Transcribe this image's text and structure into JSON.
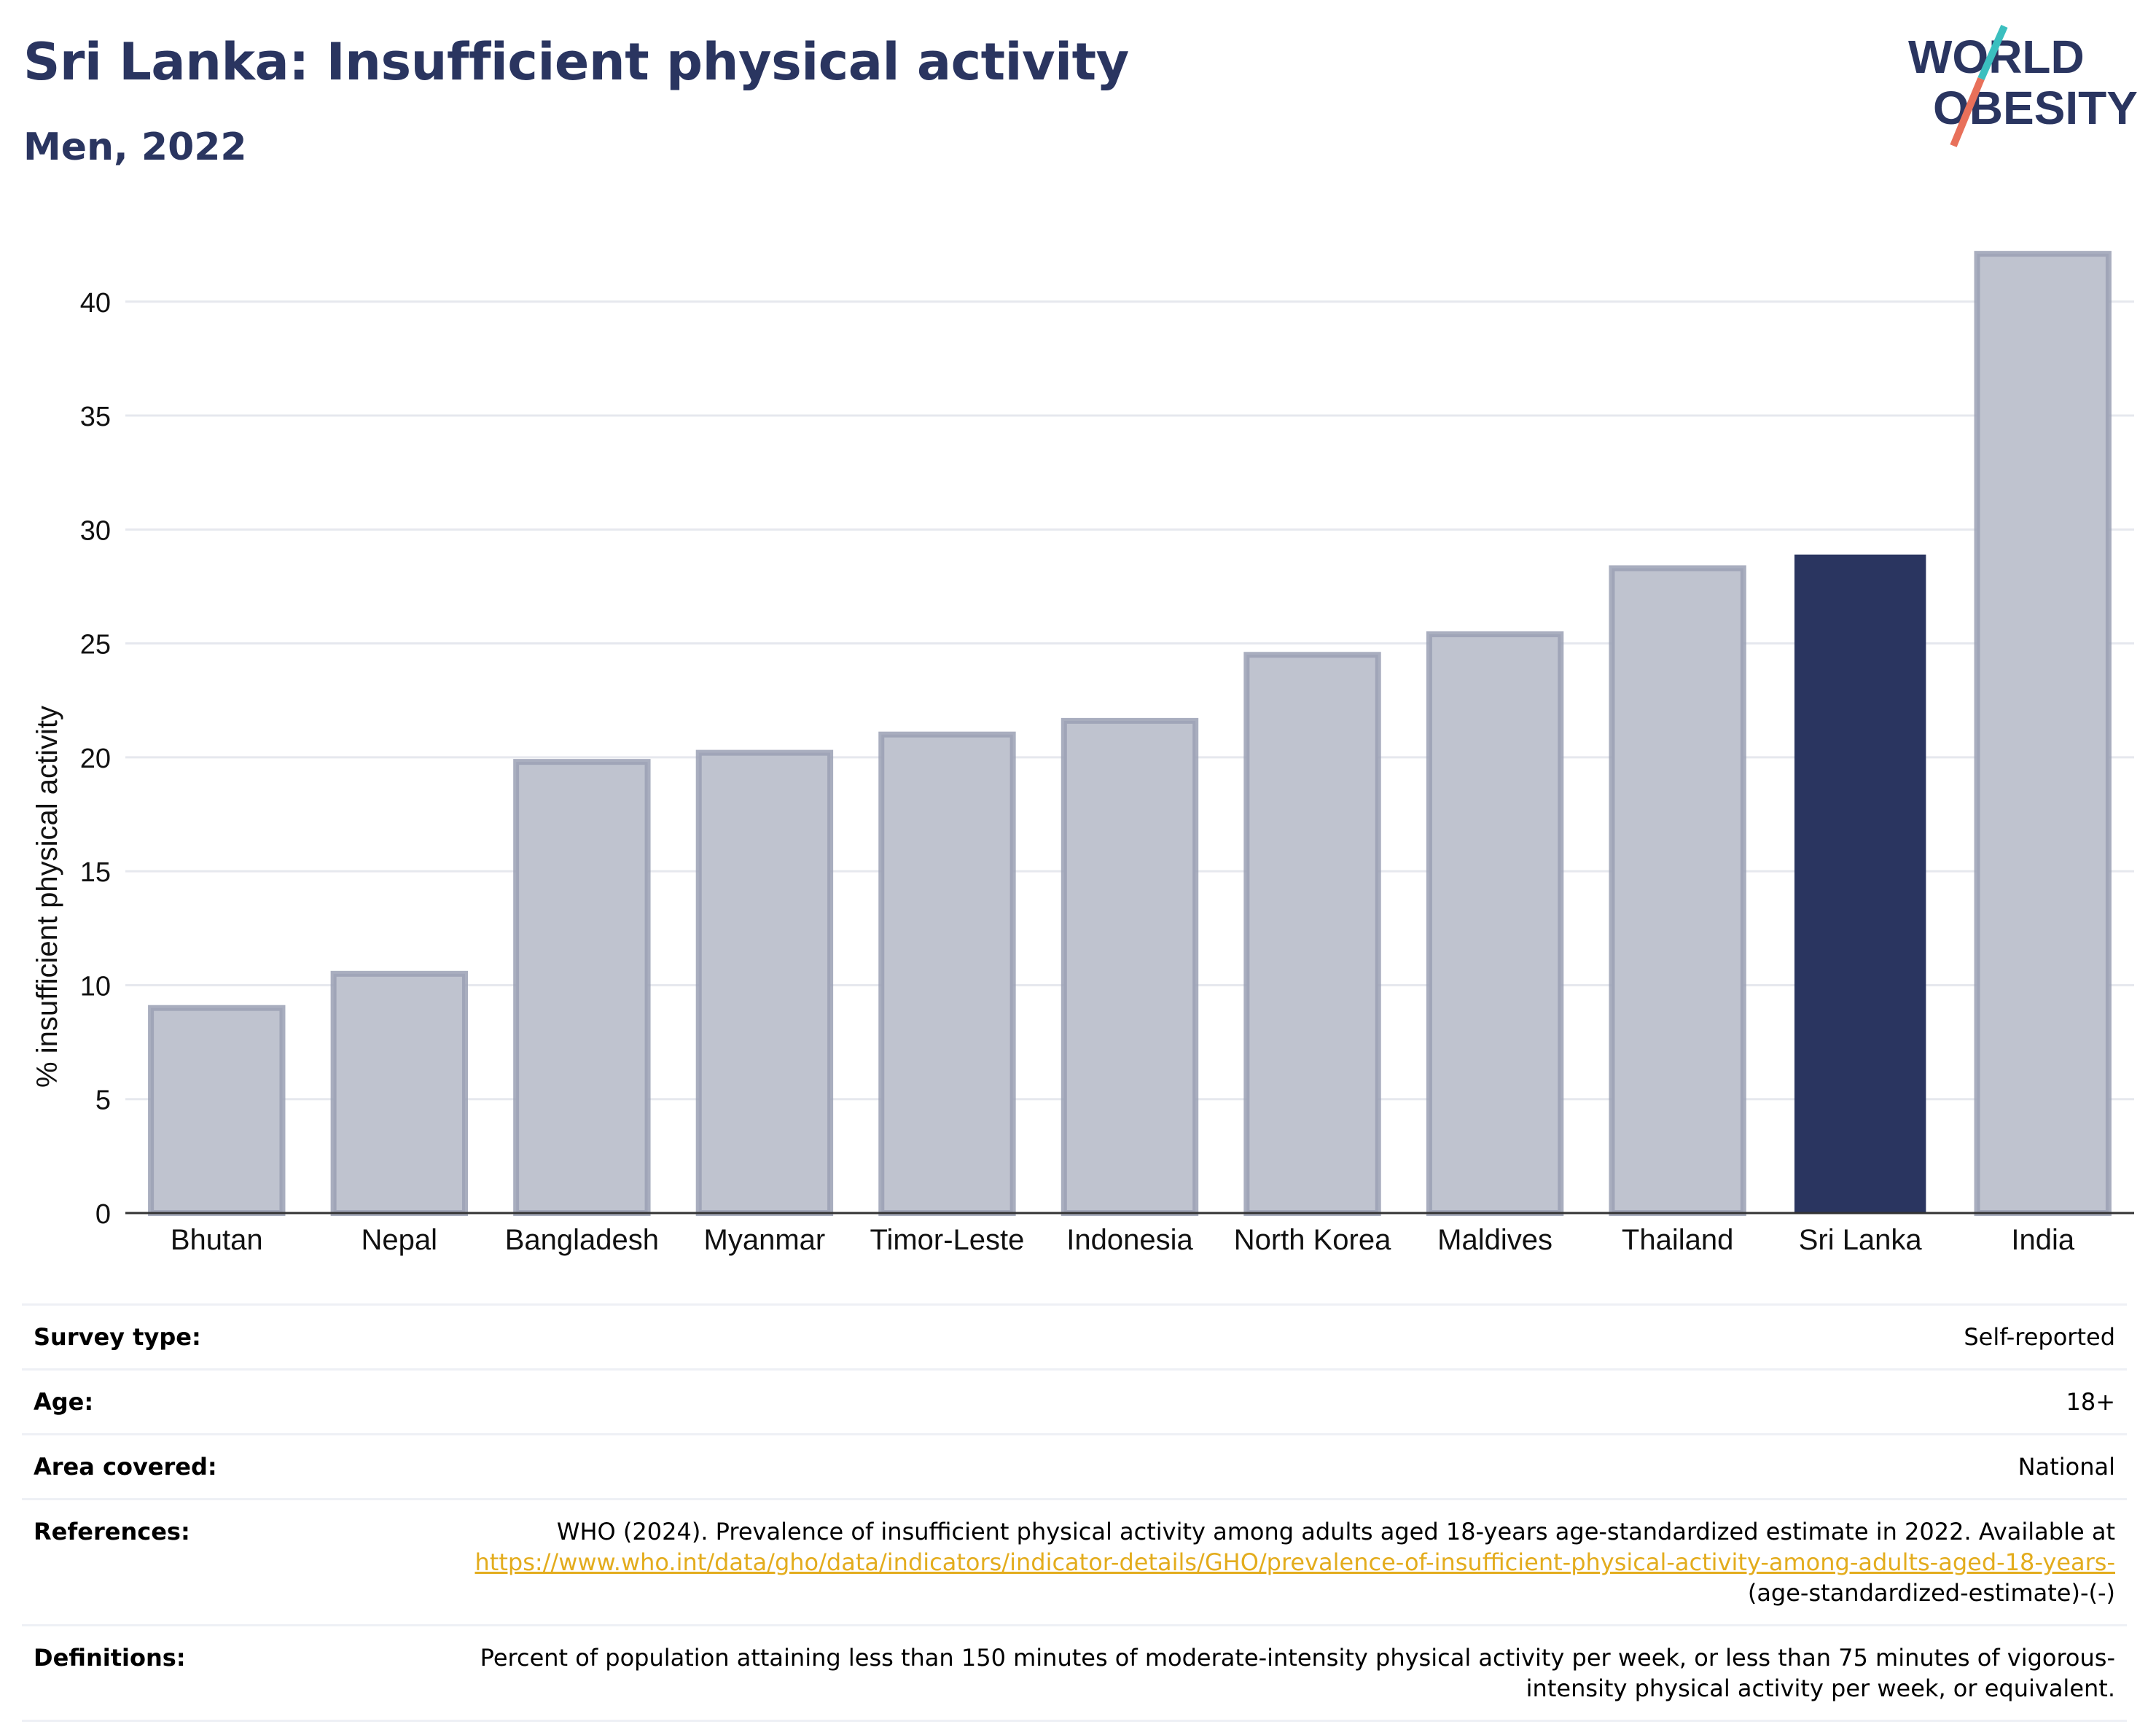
{
  "header": {
    "title": "Sri Lanka: Insufficient physical activity",
    "subtitle": "Men, 2022"
  },
  "logo": {
    "line1": "WORLD",
    "line2": "OBESITY",
    "accent_teal": "#3bbfbf",
    "accent_red": "#e8705a",
    "text_color": "#2a3560"
  },
  "chart_data": {
    "type": "bar",
    "categories": [
      "Bhutan",
      "Nepal",
      "Bangladesh",
      "Myanmar",
      "Timor-Leste",
      "Indonesia",
      "North Korea",
      "Maldives",
      "Thailand",
      "Sri Lanka",
      "India"
    ],
    "values": [
      9.0,
      10.5,
      19.8,
      20.2,
      21.0,
      21.6,
      24.5,
      25.4,
      28.3,
      28.9,
      42.1
    ],
    "highlight": "Sri Lanka",
    "ylabel": "% insufficient physical activity",
    "ylim": [
      0,
      43
    ],
    "yticks": [
      0,
      5,
      10,
      15,
      20,
      25,
      30,
      35,
      40
    ],
    "grid": true,
    "colors": {
      "bar": "#bfc3cf",
      "bar_border": "#9aa0b4",
      "highlight": "#2a3560",
      "grid": "#e6e8ee",
      "axis": "#333333"
    }
  },
  "info": {
    "survey_type_label": "Survey type:",
    "survey_type_value": "Self-reported",
    "age_label": "Age:",
    "age_value": "18+",
    "area_label": "Area covered:",
    "area_value": "National",
    "references_label": "References:",
    "references_text": "WHO (2024). Prevalence of insufficient physical activity among adults aged 18-years age-standardized estimate in 2022. Available at",
    "references_link": "https://www.who.int/data/gho/data/indicators/indicator-details/GHO/prevalence-of-insufficient-physical-activity-among-adults-aged-18-years-",
    "references_tail": "(age-standardized-estimate)-(-)",
    "definitions_label": "Definitions:",
    "definitions_text": "Percent of population attaining less than 150 minutes of moderate-intensity physical activity per week, or less than 75 minutes of vigorous-intensity physical activity per week, or equivalent."
  }
}
